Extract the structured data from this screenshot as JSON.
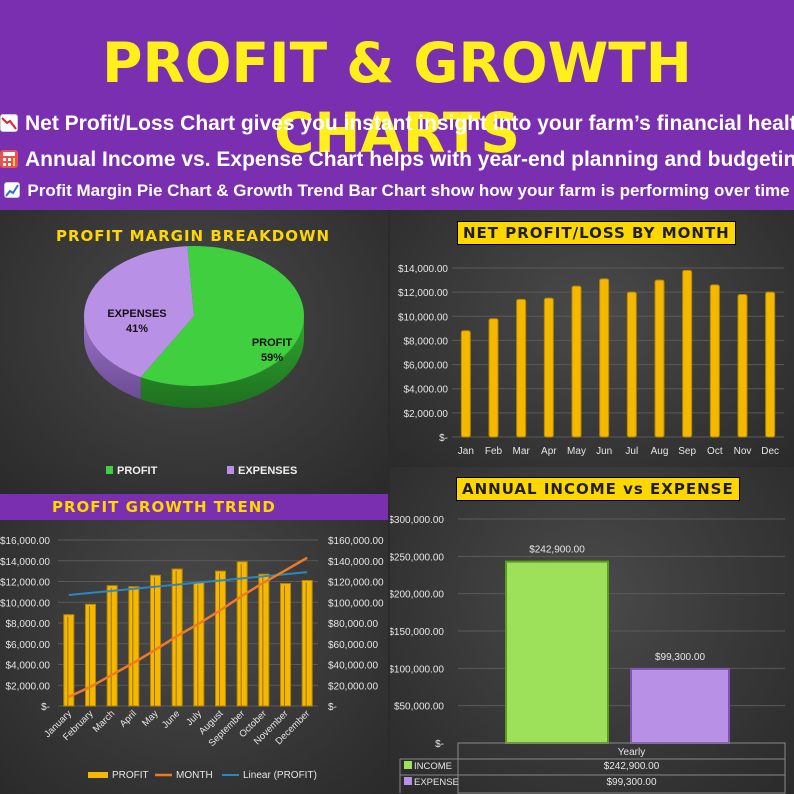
{
  "header": {
    "title": "PROFIT & GROWTH CHARTS",
    "lines": [
      "Net Profit/Loss Chart gives you instant insight into your farm’s financial health",
      "Annual Income vs. Expense Chart helps with year-end planning and budgeting",
      "Profit Margin Pie Chart & Growth Trend Bar Chart show how your farm is performing over time"
    ]
  },
  "colors": {
    "header_bg": "#7a2fb0",
    "title": "#ffef1a",
    "bar_gold": "#f5b800",
    "profit_green": "#3fcf3f",
    "expense_lavender": "#b891e6",
    "income_green": "#9de05a",
    "month_line": "#f07a24",
    "trend_line": "#2e86c1"
  },
  "chart_data": [
    {
      "type": "pie",
      "title": "PROFIT MARGIN BREAKDOWN",
      "slices": [
        {
          "name": "PROFIT",
          "value": 59,
          "label": "59%"
        },
        {
          "name": "EXPENSES",
          "value": 41,
          "label": "41%"
        }
      ],
      "legend": [
        "PROFIT",
        "EXPENSES"
      ],
      "legend_position": "bottom"
    },
    {
      "type": "bar",
      "title": "NET PROFIT/LOSS BY MONTH",
      "categories": [
        "Jan",
        "Feb",
        "Mar",
        "Apr",
        "May",
        "Jun",
        "Jul",
        "Aug",
        "Sep",
        "Oct",
        "Nov",
        "Dec"
      ],
      "values": [
        8800,
        9800,
        11400,
        11500,
        12500,
        13100,
        12000,
        13000,
        13800,
        12600,
        11800,
        12000
      ],
      "ylim": [
        0,
        14000
      ],
      "yticks": [
        "$-",
        "$2,000.00",
        "$4,000.00",
        "$6,000.00",
        "$8,000.00",
        "$10,000.00",
        "$12,000.00",
        "$14,000.00"
      ],
      "grid": true
    },
    {
      "type": "bar",
      "title": "PROFIT GROWTH TREND",
      "categories": [
        "January",
        "February",
        "March",
        "April",
        "May",
        "June",
        "July",
        "August",
        "September",
        "October",
        "November",
        "December"
      ],
      "series": [
        {
          "name": "PROFIT",
          "type": "bar",
          "axis": "left",
          "values": [
            8800,
            9800,
            11600,
            11500,
            12600,
            13200,
            11900,
            13000,
            13900,
            12700,
            11800,
            12100
          ]
        },
        {
          "name": "MONTH",
          "type": "line",
          "axis": "right",
          "values": [
            8800,
            18600,
            30200,
            41700,
            54300,
            67500,
            79400,
            92400,
            106300,
            119000,
            130800,
            142900
          ]
        },
        {
          "name": "Linear (PROFIT)",
          "type": "line",
          "axis": "left",
          "values": [
            10700,
            10900,
            11100,
            11300,
            11500,
            11700,
            11900,
            12100,
            12300,
            12500,
            12700,
            12900
          ]
        }
      ],
      "ylim_left": [
        0,
        16000
      ],
      "ylim_right": [
        0,
        160000
      ],
      "yticks_left": [
        "$-",
        "$2,000.00",
        "$4,000.00",
        "$6,000.00",
        "$8,000.00",
        "$10,000.00",
        "$12,000.00",
        "$14,000.00",
        "$16,000.00"
      ],
      "yticks_right": [
        "$-",
        "$20,000.00",
        "$40,000.00",
        "$60,000.00",
        "$80,000.00",
        "$100,000.00",
        "$120,000.00",
        "$140,000.00",
        "$160,000.00"
      ],
      "legend": [
        "PROFIT",
        "MONTH",
        "Linear (PROFIT)"
      ],
      "legend_position": "bottom"
    },
    {
      "type": "bar",
      "title": "ANNUAL INCOME vs EXPENSE",
      "categories": [
        "Yearly"
      ],
      "series": [
        {
          "name": "INCOME",
          "values": [
            242900
          ],
          "label": "$242,900.00"
        },
        {
          "name": "EXPENSE",
          "values": [
            99300
          ],
          "label": "$99,300.00"
        }
      ],
      "ylim": [
        0,
        300000
      ],
      "yticks": [
        "$-",
        "$50,000.00",
        "$100,000.00",
        "$150,000.00",
        "$200,000.00",
        "$250,000.00",
        "$300,000.00"
      ],
      "table": {
        "header": "Yearly",
        "rows": [
          [
            "INCOME",
            "$242,900.00"
          ],
          [
            "EXPENSE",
            "$99,300.00"
          ]
        ]
      }
    }
  ]
}
